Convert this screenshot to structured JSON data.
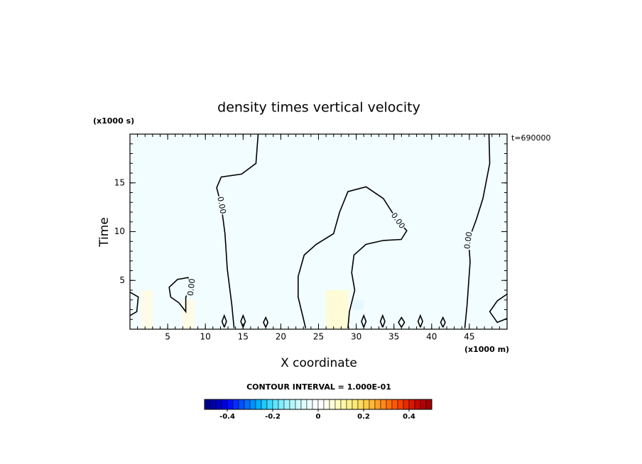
{
  "chart_data": {
    "type": "contour",
    "title": "density times vertical velocity",
    "y_unit_label": "(x1000 s)",
    "x_unit_label": "(x1000 m)",
    "time_label": "t=690000",
    "ylabel": "Time",
    "xlabel": "X coordinate",
    "contour_interval_label": "CONTOUR INTERVAL = 1.000E-01",
    "xlim": [
      0,
      50
    ],
    "ylim": [
      0,
      20
    ],
    "xticks": [
      5,
      10,
      15,
      20,
      25,
      30,
      35,
      40,
      45
    ],
    "yticks": [
      5,
      10,
      15
    ],
    "minor_step": 1,
    "field_color": "#f2fdff",
    "contour_level": {
      "value": 0,
      "label": "0.00"
    },
    "shaded": [
      {
        "x": [
          26,
          29
        ],
        "y": [
          0,
          4
        ],
        "color": "#fffbd6"
      },
      {
        "x": [
          1.5,
          3
        ],
        "y": [
          0,
          4
        ],
        "color": "#fffbe6"
      },
      {
        "x": [
          7,
          8.5
        ],
        "y": [
          0,
          3
        ],
        "color": "#fffbe6"
      },
      {
        "x": [
          29.5,
          31
        ],
        "y": [
          2,
          3
        ],
        "color": "#e6f8ff"
      }
    ],
    "contours": [
      {
        "x": [
          17.0,
          16.7,
          14.8,
          12.1,
          11.5,
          12.1,
          12.6,
          12.9,
          13.5,
          13.8
        ],
        "y": [
          20,
          17.0,
          15.9,
          15.6,
          14.5,
          12.7,
          9.8,
          6.2,
          2.5,
          0.1
        ]
      },
      {
        "x": [
          23.3,
          22.3,
          22.3,
          23.1,
          24.7,
          27.0,
          27.8,
          28.9,
          31.3,
          33.6,
          35.5,
          36.7,
          35.97,
          33.6,
          31.3,
          29.7,
          29.4,
          29.8,
          29.1,
          28.9
        ],
        "y": [
          0.1,
          3.3,
          5.4,
          7.6,
          8.7,
          9.8,
          12.0,
          14.1,
          14.6,
          13.4,
          11.1,
          10.1,
          9.2,
          9.1,
          8.7,
          7.6,
          5.8,
          4.0,
          1.8,
          0.1
        ]
      },
      {
        "x": [
          47.6,
          47.7,
          46.8,
          45.9,
          44.9,
          45.1,
          44.9,
          44.7,
          44.4
        ],
        "y": [
          20,
          17.0,
          13.4,
          11.2,
          9.1,
          6.9,
          4.7,
          2.5,
          0.1
        ]
      },
      {
        "x": [
          5.4,
          5.2,
          6.3,
          7.7,
          8.2,
          7.4,
          7.4,
          6.5,
          5.4
        ],
        "y": [
          3.3,
          4.3,
          5.1,
          5.3,
          4.3,
          3.3,
          1.8,
          2.7,
          3.3
        ]
      },
      {
        "x": [
          50,
          48.7,
          47.7,
          48.7,
          50
        ],
        "y": [
          3.6,
          2.9,
          1.8,
          0.7,
          1.1
        ]
      },
      {
        "x": [
          0,
          1.1,
          0.9,
          0
        ],
        "y": [
          3.8,
          3.3,
          1.8,
          1.4
        ]
      },
      {
        "x": [
          12.5,
          12.8,
          12.5,
          12.2,
          12.5
        ],
        "y": [
          0.2,
          0.8,
          1.4,
          0.8,
          0.2
        ]
      },
      {
        "x": [
          15.0,
          15.3,
          15.0,
          14.7,
          15.0
        ],
        "y": [
          0.2,
          0.8,
          1.4,
          0.8,
          0.2
        ]
      },
      {
        "x": [
          18.0,
          18.3,
          18.0,
          17.7,
          18.0
        ],
        "y": [
          0.2,
          0.7,
          1.2,
          0.7,
          0.2
        ]
      },
      {
        "x": [
          31.0,
          31.3,
          31.0,
          30.7,
          31.0
        ],
        "y": [
          0.2,
          0.8,
          1.4,
          0.8,
          0.2
        ]
      },
      {
        "x": [
          33.5,
          33.8,
          33.5,
          33.2,
          33.5
        ],
        "y": [
          0.2,
          0.8,
          1.4,
          0.8,
          0.2
        ]
      },
      {
        "x": [
          36.0,
          36.4,
          36.0,
          35.6,
          36.0
        ],
        "y": [
          0.2,
          0.7,
          1.2,
          0.7,
          0.2
        ]
      },
      {
        "x": [
          38.5,
          38.8,
          38.5,
          38.2,
          38.5
        ],
        "y": [
          0.2,
          0.8,
          1.4,
          0.8,
          0.2
        ]
      },
      {
        "x": [
          41.5,
          41.8,
          41.5,
          41.2,
          41.5
        ],
        "y": [
          0.2,
          0.7,
          1.2,
          0.7,
          0.2
        ]
      }
    ],
    "colorbar": {
      "lim": [
        -0.5,
        0.5
      ],
      "ticks": [
        -0.4,
        -0.2,
        0,
        0.2,
        0.4
      ],
      "colors": [
        "#00008c",
        "#0000a8",
        "#0000c4",
        "#0000e0",
        "#0010ff",
        "#0030ff",
        "#0050ff",
        "#0070ff",
        "#0090ff",
        "#00b0ff",
        "#20c8ff",
        "#40d8ff",
        "#60e4ff",
        "#80ecff",
        "#a0f2ff",
        "#b8f6ff",
        "#cdf9ff",
        "#ddfcff",
        "#ecfeff",
        "#f8ffff",
        "#ffffff",
        "#fffff0",
        "#ffffd8",
        "#fffcc0",
        "#fff8a8",
        "#fff090",
        "#ffe878",
        "#ffdc60",
        "#ffcc48",
        "#ffb838",
        "#ffa028",
        "#ff8818",
        "#ff7008",
        "#ff5800",
        "#f84000",
        "#e82800",
        "#d81800",
        "#c80800",
        "#b40000",
        "#a00000"
      ]
    }
  }
}
